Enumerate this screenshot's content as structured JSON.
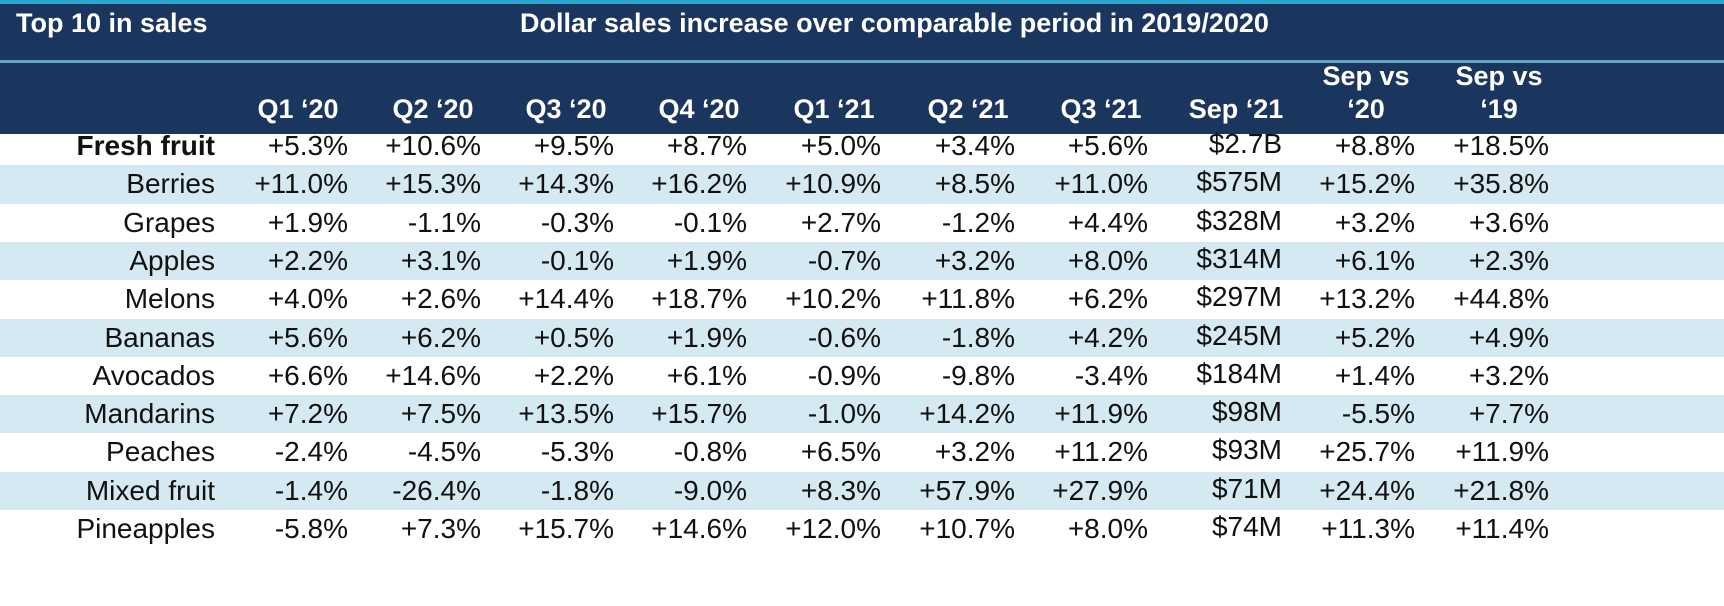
{
  "header": {
    "left_title": "Top 10 in sales",
    "main_title": "Dollar sales increase over comparable period in 2019/2020"
  },
  "columns": [
    [
      "Q1 ‘20"
    ],
    [
      "Q2 ‘20"
    ],
    [
      "Q3 ‘20"
    ],
    [
      "Q4 ‘20"
    ],
    [
      "Q1 ‘21"
    ],
    [
      "Q2 ‘21"
    ],
    [
      "Q3 ‘21"
    ],
    [
      "Sep ‘21"
    ],
    [
      "Sep vs",
      "‘20"
    ],
    [
      "Sep vs",
      "‘19"
    ]
  ],
  "colors": {
    "header_bg": "#1a355e",
    "stripe_bg": "#d5e9f2",
    "accent": "#2aa6cf"
  },
  "chart_data": {
    "type": "table",
    "title": "Dollar sales increase over comparable period in 2019/2020",
    "rows": [
      {
        "label": "Fresh fruit",
        "bold": true,
        "values": [
          "+5.3%",
          "+10.6%",
          "+9.5%",
          "+8.7%",
          "+5.0%",
          "+3.4%",
          "+5.6%",
          "$2.7B",
          "+8.8%",
          "+18.5%"
        ]
      },
      {
        "label": "Berries",
        "bold": false,
        "values": [
          "+11.0%",
          "+15.3%",
          "+14.3%",
          "+16.2%",
          "+10.9%",
          "+8.5%",
          "+11.0%",
          "$575M",
          "+15.2%",
          "+35.8%"
        ]
      },
      {
        "label": "Grapes",
        "bold": false,
        "values": [
          "+1.9%",
          "-1.1%",
          "-0.3%",
          "-0.1%",
          "+2.7%",
          "-1.2%",
          "+4.4%",
          "$328M",
          "+3.2%",
          "+3.6%"
        ]
      },
      {
        "label": "Apples",
        "bold": false,
        "values": [
          "+2.2%",
          "+3.1%",
          "-0.1%",
          "+1.9%",
          "-0.7%",
          "+3.2%",
          "+8.0%",
          "$314M",
          "+6.1%",
          "+2.3%"
        ]
      },
      {
        "label": "Melons",
        "bold": false,
        "values": [
          "+4.0%",
          "+2.6%",
          "+14.4%",
          "+18.7%",
          "+10.2%",
          "+11.8%",
          "+6.2%",
          "$297M",
          "+13.2%",
          "+44.8%"
        ]
      },
      {
        "label": "Bananas",
        "bold": false,
        "values": [
          "+5.6%",
          "+6.2%",
          "+0.5%",
          "+1.9%",
          "-0.6%",
          "-1.8%",
          "+4.2%",
          "$245M",
          "+5.2%",
          "+4.9%"
        ]
      },
      {
        "label": "Avocados",
        "bold": false,
        "values": [
          "+6.6%",
          "+14.6%",
          "+2.2%",
          "+6.1%",
          "-0.9%",
          "-9.8%",
          "-3.4%",
          "$184M",
          "+1.4%",
          "+3.2%"
        ]
      },
      {
        "label": "Mandarins",
        "bold": false,
        "values": [
          "+7.2%",
          "+7.5%",
          "+13.5%",
          "+15.7%",
          "-1.0%",
          "+14.2%",
          "+11.9%",
          "$98M",
          "-5.5%",
          "+7.7%"
        ]
      },
      {
        "label": "Peaches",
        "bold": false,
        "values": [
          "-2.4%",
          "-4.5%",
          "-5.3%",
          "-0.8%",
          "+6.5%",
          "+3.2%",
          "+11.2%",
          "$93M",
          "+25.7%",
          "+11.9%"
        ]
      },
      {
        "label": "Mixed fruit",
        "bold": false,
        "values": [
          "-1.4%",
          "-26.4%",
          "-1.8%",
          "-9.0%",
          "+8.3%",
          "+57.9%",
          "+27.9%",
          "$71M",
          "+24.4%",
          "+21.8%"
        ]
      },
      {
        "label": "Pineapples",
        "bold": false,
        "values": [
          "-5.8%",
          "+7.3%",
          "+15.7%",
          "+14.6%",
          "+12.0%",
          "+10.7%",
          "+8.0%",
          "$74M",
          "+11.3%",
          "+11.4%"
        ]
      }
    ]
  }
}
